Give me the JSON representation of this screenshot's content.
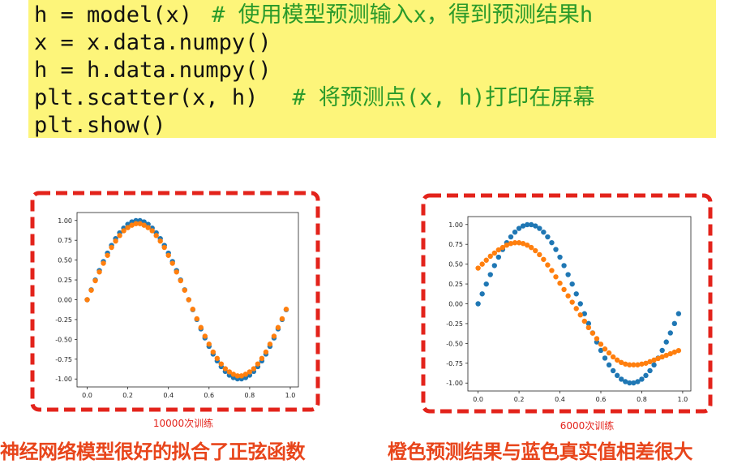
{
  "code": {
    "lines": [
      {
        "code": "h = model(x)",
        "comment": "# 使用模型预测输入x，得到预测结果h"
      },
      {
        "code": "x = x.data.numpy()"
      },
      {
        "code": "h = h.data.numpy()"
      },
      {
        "code": "plt.scatter(x, h)",
        "comment": "# 将预测点(x, h)打印在屏幕"
      },
      {
        "code": "plt.show()"
      }
    ]
  },
  "chart_data": [
    {
      "type": "scatter",
      "caption": "10000次训练",
      "x": [
        0,
        0.02,
        0.04,
        0.06,
        0.08,
        0.1,
        0.12,
        0.14,
        0.16,
        0.18,
        0.2,
        0.22,
        0.24,
        0.26,
        0.28,
        0.3,
        0.32,
        0.34,
        0.36,
        0.38,
        0.4,
        0.42,
        0.44,
        0.46,
        0.48,
        0.5,
        0.52,
        0.54,
        0.56,
        0.58,
        0.6,
        0.62,
        0.64,
        0.66,
        0.68,
        0.7,
        0.72,
        0.74,
        0.76,
        0.78,
        0.8,
        0.82,
        0.84,
        0.86,
        0.88,
        0.9,
        0.92,
        0.94,
        0.96,
        0.98
      ],
      "series": [
        {
          "color": "#1f77b4",
          "values": [
            0,
            0.125,
            0.249,
            0.368,
            0.482,
            0.588,
            0.685,
            0.771,
            0.844,
            0.904,
            0.951,
            0.982,
            0.998,
            0.998,
            0.982,
            0.951,
            0.904,
            0.844,
            0.771,
            0.685,
            0.588,
            0.482,
            0.368,
            0.249,
            0.125,
            0,
            -0.125,
            -0.249,
            -0.368,
            -0.482,
            -0.588,
            -0.685,
            -0.771,
            -0.844,
            -0.904,
            -0.951,
            -0.982,
            -0.998,
            -0.998,
            -0.982,
            -0.951,
            -0.904,
            -0.844,
            -0.771,
            -0.685,
            -0.588,
            -0.482,
            -0.368,
            -0.249,
            -0.125
          ]
        },
        {
          "color": "#ff7f0e",
          "values": [
            0,
            0.12,
            0.24,
            0.35,
            0.46,
            0.56,
            0.66,
            0.74,
            0.81,
            0.87,
            0.91,
            0.94,
            0.96,
            0.96,
            0.94,
            0.91,
            0.87,
            0.81,
            0.74,
            0.66,
            0.56,
            0.46,
            0.35,
            0.24,
            0.12,
            0,
            -0.12,
            -0.24,
            -0.35,
            -0.46,
            -0.56,
            -0.66,
            -0.74,
            -0.81,
            -0.87,
            -0.91,
            -0.94,
            -0.96,
            -0.96,
            -0.94,
            -0.91,
            -0.87,
            -0.81,
            -0.74,
            -0.66,
            -0.56,
            -0.46,
            -0.35,
            -0.24,
            -0.12
          ]
        }
      ],
      "xlim": [
        -0.05,
        1.04
      ],
      "ylim": [
        -1.1,
        1.1
      ],
      "xticks": [
        {
          "value": 0,
          "label": "0.0"
        },
        0.2,
        0.4,
        0.6,
        0.8,
        {
          "value": 1,
          "label": "1.0"
        }
      ],
      "yticks": [
        {
          "value": -1,
          "label": "-1.00"
        },
        -0.75,
        {
          "value": -0.5,
          "label": "-0.50"
        },
        -0.25,
        {
          "value": 0,
          "label": "0.00"
        },
        0.25,
        {
          "value": 0.5,
          "label": "0.50"
        },
        0.75,
        {
          "value": 1,
          "label": "1.00"
        }
      ]
    },
    {
      "type": "scatter",
      "caption": "6000次训练",
      "x": [
        0,
        0.02,
        0.04,
        0.06,
        0.08,
        0.1,
        0.12,
        0.14,
        0.16,
        0.18,
        0.2,
        0.22,
        0.24,
        0.26,
        0.28,
        0.3,
        0.32,
        0.34,
        0.36,
        0.38,
        0.4,
        0.42,
        0.44,
        0.46,
        0.48,
        0.5,
        0.52,
        0.54,
        0.56,
        0.58,
        0.6,
        0.62,
        0.64,
        0.66,
        0.68,
        0.7,
        0.72,
        0.74,
        0.76,
        0.78,
        0.8,
        0.82,
        0.84,
        0.86,
        0.88,
        0.9,
        0.92,
        0.94,
        0.96,
        0.98
      ],
      "series": [
        {
          "color": "#1f77b4",
          "values": [
            0,
            0.125,
            0.249,
            0.368,
            0.482,
            0.588,
            0.685,
            0.771,
            0.844,
            0.904,
            0.951,
            0.982,
            0.998,
            0.998,
            0.982,
            0.951,
            0.904,
            0.844,
            0.771,
            0.685,
            0.588,
            0.482,
            0.368,
            0.249,
            0.125,
            0,
            -0.125,
            -0.249,
            -0.368,
            -0.482,
            -0.588,
            -0.685,
            -0.771,
            -0.844,
            -0.904,
            -0.951,
            -0.982,
            -0.998,
            -0.998,
            -0.982,
            -0.951,
            -0.904,
            -0.844,
            -0.771,
            -0.685,
            -0.588,
            -0.482,
            -0.368,
            -0.249,
            -0.125
          ]
        },
        {
          "color": "#ff7f0e",
          "values": [
            0.45,
            0.5,
            0.55,
            0.6,
            0.64,
            0.68,
            0.71,
            0.74,
            0.76,
            0.77,
            0.77,
            0.76,
            0.74,
            0.71,
            0.67,
            0.62,
            0.56,
            0.49,
            0.42,
            0.34,
            0.26,
            0.18,
            0.1,
            0.02,
            -0.06,
            -0.14,
            -0.22,
            -0.3,
            -0.37,
            -0.44,
            -0.51,
            -0.57,
            -0.62,
            -0.67,
            -0.71,
            -0.74,
            -0.76,
            -0.77,
            -0.77,
            -0.77,
            -0.76,
            -0.75,
            -0.73,
            -0.71,
            -0.69,
            -0.67,
            -0.65,
            -0.63,
            -0.61,
            -0.59
          ]
        }
      ],
      "xlim": [
        -0.05,
        1.04
      ],
      "ylim": [
        -1.1,
        1.1
      ],
      "xticks": [
        {
          "value": 0,
          "label": "0.0"
        },
        0.2,
        0.4,
        0.6,
        0.8,
        {
          "value": 1,
          "label": "1.0"
        }
      ],
      "yticks": [
        {
          "value": -1,
          "label": "-1.00"
        },
        -0.75,
        {
          "value": -0.5,
          "label": "-0.50"
        },
        -0.25,
        {
          "value": 0,
          "label": "0.00"
        },
        0.25,
        {
          "value": 0.5,
          "label": "0.50"
        },
        0.75,
        {
          "value": 1,
          "label": "1.00"
        }
      ]
    }
  ],
  "footer": {
    "left": "神经网络模型很好的拟合了正弦函数",
    "right": "橙色预测结果与蓝色真实值相差很大"
  }
}
